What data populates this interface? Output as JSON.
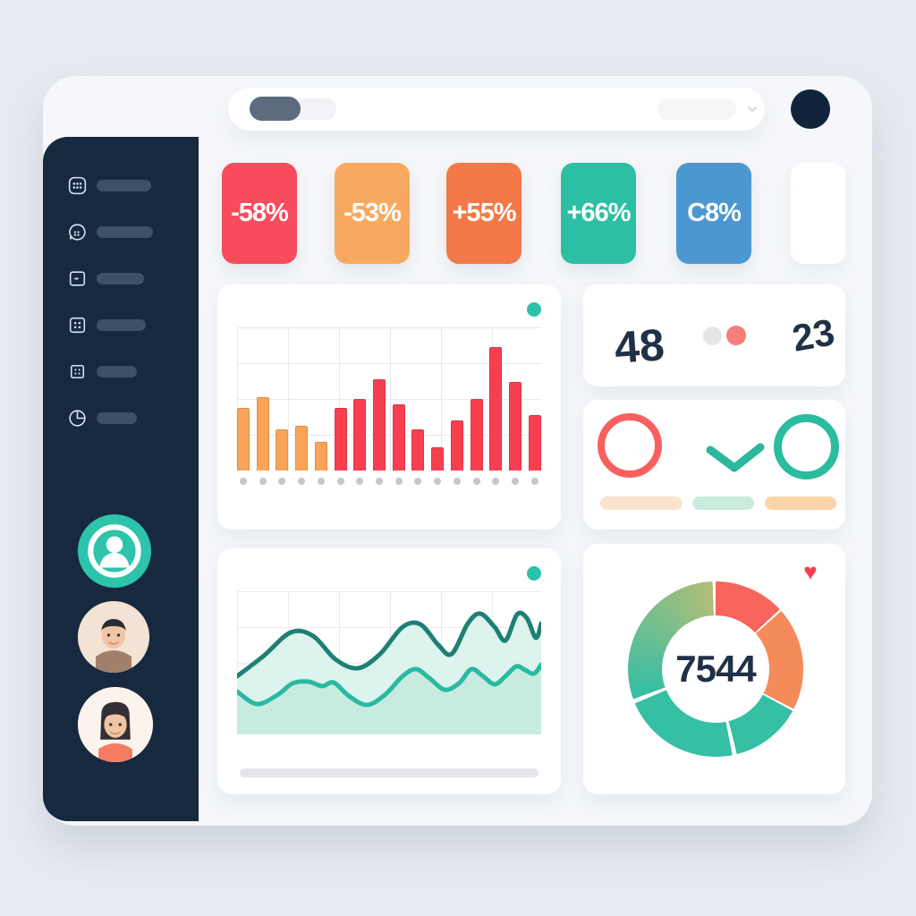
{
  "colors": {
    "page_bg": "#e7ebf1",
    "panel_bg": "#f5f7fa",
    "sidebar_bg": "#16293f",
    "accent_teal": "#2cc2a9",
    "accent_red": "#f84c5c",
    "navy_text": "#1f3147"
  },
  "sidebar": {
    "items": [
      {
        "icon": "apps-grid-icon"
      },
      {
        "icon": "chat-bubble-icon"
      },
      {
        "icon": "card-dash-icon"
      },
      {
        "icon": "grid-4-icon"
      },
      {
        "icon": "grid-4-small-icon"
      },
      {
        "icon": "pie-chart-icon"
      }
    ],
    "avatars": [
      {
        "type": "user-silhouette",
        "bg": "#2dc4aa"
      },
      {
        "type": "man-illustration"
      },
      {
        "type": "woman-illustration"
      }
    ]
  },
  "stat_cards": [
    {
      "label": "-58%",
      "color": "#f84c5c"
    },
    {
      "label": "-53%",
      "color": "#f9a95f"
    },
    {
      "label": "+55%",
      "color": "#f47848"
    },
    {
      "label": "+66%",
      "color": "#2dbfa4"
    },
    {
      "label": "C8%",
      "color": "#4d97d0"
    },
    {
      "label": "",
      "color": "#ffffff"
    }
  ],
  "counter_card": {
    "left_value": "48",
    "right_value": "23",
    "toggle": {
      "off_color": "#e6e6e9",
      "on_color": "#f87c78"
    }
  },
  "status_card": {
    "ring_left_color": "#f8605f",
    "check_color": "#2bb89c",
    "ring_right_color": "#2bbc9f",
    "pills": [
      {
        "color": "#fae4cd"
      },
      {
        "color": "#c9ecdc"
      },
      {
        "color": "#fbd4aa"
      }
    ]
  },
  "donut_card": {
    "value": "7544",
    "heart_color": "#f6404e"
  },
  "chart_data": [
    {
      "type": "bar",
      "title": "",
      "xlabel": "",
      "ylabel": "",
      "ylim": [
        0,
        100
      ],
      "x_axis_style": "dot-ticks",
      "grid": true,
      "values": [
        44,
        51,
        29,
        31,
        20,
        44,
        50,
        64,
        46,
        29,
        16,
        35,
        50,
        86,
        62,
        39
      ],
      "colors": [
        "#f9a458",
        "#f9a458",
        "#f9a458",
        "#f9a458",
        "#f9a458",
        "#f83f50",
        "#f83f50",
        "#f83f50",
        "#f83f50",
        "#f83f50",
        "#f83f50",
        "#f83f50",
        "#f83f50",
        "#f83f50",
        "#f83f50",
        "#f83f50"
      ]
    },
    {
      "type": "line",
      "title": "",
      "grid": true,
      "units": "viewBox 340x160, y inverted",
      "series": [
        {
          "name": "upper-wave",
          "color": "#1e8073",
          "fill": "#ddf3ed",
          "points": [
            [
              0,
              95
            ],
            [
              30,
              72
            ],
            [
              60,
              46
            ],
            [
              85,
              50
            ],
            [
              110,
              76
            ],
            [
              135,
              86
            ],
            [
              160,
              70
            ],
            [
              185,
              40
            ],
            [
              205,
              37
            ],
            [
              225,
              60
            ],
            [
              240,
              70
            ],
            [
              258,
              36
            ],
            [
              272,
              25
            ],
            [
              288,
              40
            ],
            [
              300,
              55
            ],
            [
              313,
              26
            ],
            [
              324,
              30
            ],
            [
              334,
              52
            ],
            [
              340,
              36
            ]
          ]
        },
        {
          "name": "lower-wave",
          "color": "#2ab9a1",
          "fill": "#c7ecdf",
          "points": [
            [
              0,
              112
            ],
            [
              22,
              126
            ],
            [
              45,
              116
            ],
            [
              62,
              103
            ],
            [
              80,
              101
            ],
            [
              95,
              106
            ],
            [
              108,
              102
            ],
            [
              125,
              117
            ],
            [
              145,
              127
            ],
            [
              165,
              116
            ],
            [
              185,
              95
            ],
            [
              200,
              87
            ],
            [
              215,
              97
            ],
            [
              232,
              110
            ],
            [
              248,
              103
            ],
            [
              262,
              87
            ],
            [
              275,
              95
            ],
            [
              288,
              104
            ],
            [
              300,
              95
            ],
            [
              312,
              84
            ],
            [
              322,
              88
            ],
            [
              332,
              92
            ],
            [
              340,
              82
            ]
          ]
        }
      ]
    },
    {
      "type": "pie",
      "title": "",
      "center_label": "7544",
      "segments": [
        {
          "color": "#f7655d",
          "from": 0,
          "to": 47
        },
        {
          "color": "#f58a5b",
          "from": 48.5,
          "to": 117
        },
        {
          "color": "#35bfa4",
          "from": 118.5,
          "to": 166
        },
        {
          "color": "#35bfa4",
          "from": 169,
          "to": 247
        },
        {
          "color": "#35bfa4",
          "color2": "#b0bd78",
          "from": 250,
          "to": 358
        }
      ]
    }
  ]
}
